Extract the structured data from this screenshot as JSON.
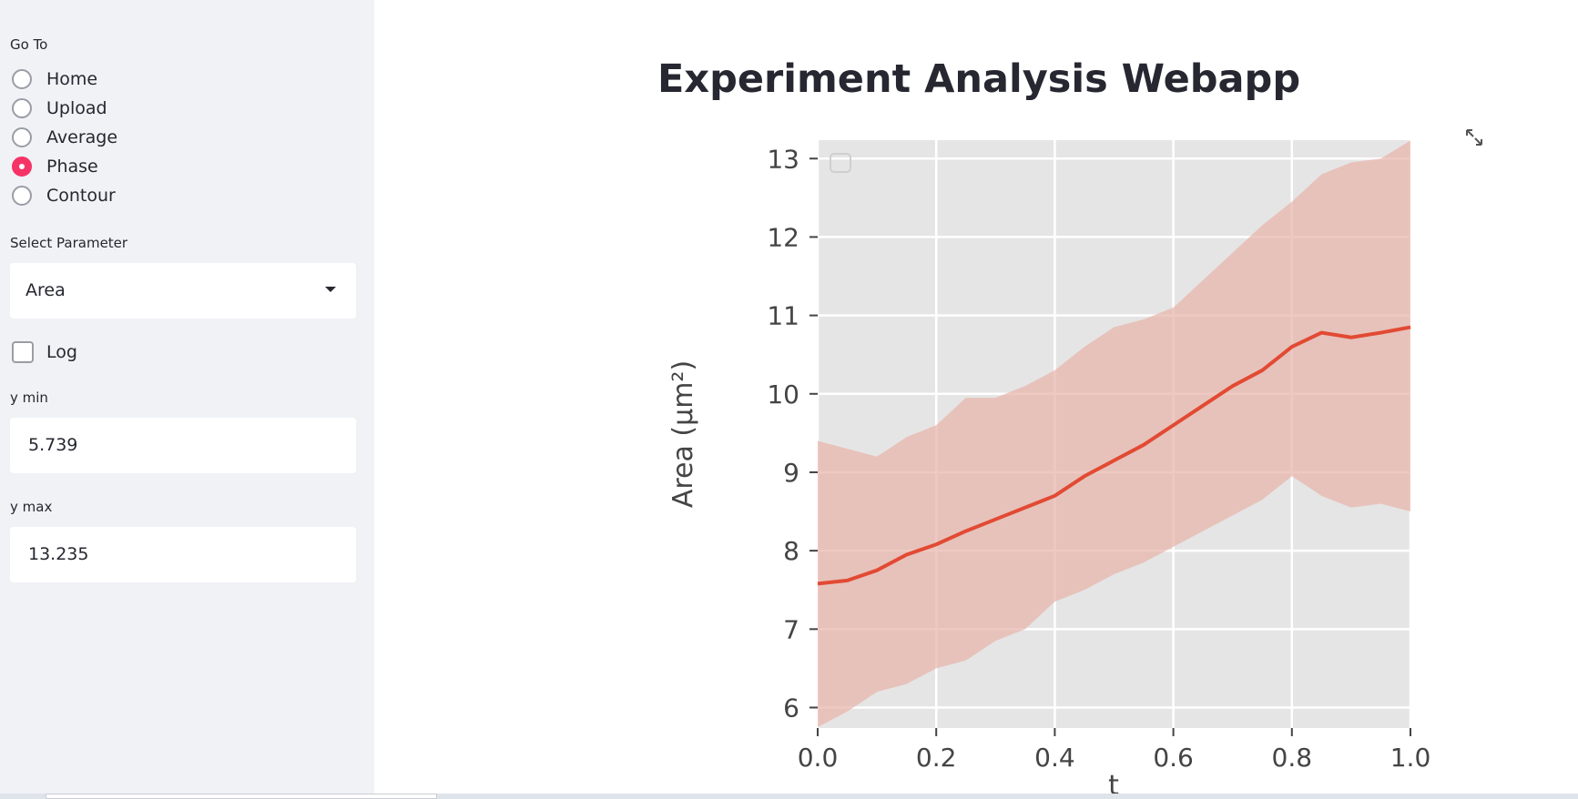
{
  "sidebar": {
    "goto_label": "Go To",
    "nav": [
      {
        "label": "Home",
        "selected": false
      },
      {
        "label": "Upload",
        "selected": false
      },
      {
        "label": "Average",
        "selected": false
      },
      {
        "label": "Phase",
        "selected": true
      },
      {
        "label": "Contour",
        "selected": false
      }
    ],
    "param_label": "Select Parameter",
    "param_value": "Area",
    "log_label": "Log",
    "log_checked": false,
    "ymin_label": "y min",
    "ymin_value": "5.739",
    "ymax_label": "y max",
    "ymax_value": "13.235"
  },
  "main": {
    "title": "Experiment Analysis Webapp"
  },
  "colors": {
    "accent": "#f63366",
    "sidebar_bg": "#f0f2f6",
    "plot_bg": "#e5e5e5",
    "line": "#e24a33",
    "band": "#e8b4ab"
  },
  "icons": {
    "expand": "expand-icon"
  },
  "chart_data": {
    "type": "line",
    "xlabel": "t",
    "ylabel": "Area (μm²)",
    "xlim": [
      0.0,
      1.0
    ],
    "ylim": [
      5.739,
      13.235
    ],
    "xticks": [
      "0.0",
      "0.2",
      "0.4",
      "0.6",
      "0.8",
      "1.0"
    ],
    "yticks": [
      "6",
      "7",
      "8",
      "9",
      "10",
      "11",
      "12",
      "13"
    ],
    "grid": true,
    "legend": "top-left, empty",
    "x": [
      0.0,
      0.05,
      0.1,
      0.15,
      0.2,
      0.25,
      0.3,
      0.35,
      0.4,
      0.45,
      0.5,
      0.55,
      0.6,
      0.65,
      0.7,
      0.75,
      0.8,
      0.85,
      0.9,
      0.95,
      1.0
    ],
    "series": [
      {
        "mean": [
          7.58,
          7.62,
          7.75,
          7.95,
          8.08,
          8.25,
          8.4,
          8.55,
          8.7,
          8.95,
          9.15,
          9.35,
          9.6,
          9.85,
          10.1,
          10.3,
          10.6,
          10.78,
          10.72,
          10.78,
          10.85
        ],
        "lower": [
          5.75,
          5.95,
          6.2,
          6.3,
          6.5,
          6.6,
          6.85,
          7.0,
          7.35,
          7.5,
          7.7,
          7.85,
          8.05,
          8.25,
          8.45,
          8.65,
          8.95,
          8.7,
          8.55,
          8.6,
          8.5
        ],
        "upper": [
          9.4,
          9.3,
          9.2,
          9.45,
          9.6,
          9.95,
          9.95,
          10.1,
          10.3,
          10.6,
          10.85,
          10.95,
          11.1,
          11.45,
          11.8,
          12.15,
          12.45,
          12.8,
          12.95,
          13.0,
          13.23
        ]
      }
    ]
  }
}
